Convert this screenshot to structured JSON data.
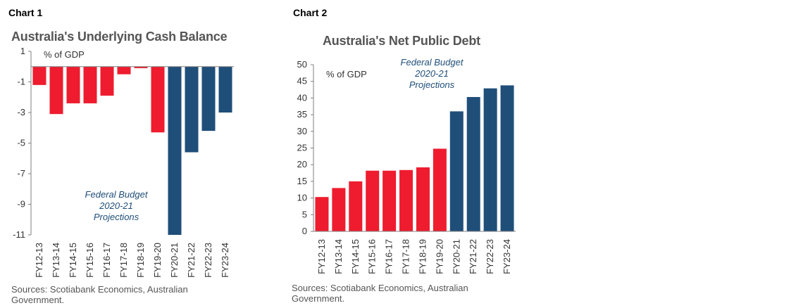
{
  "colors": {
    "actual": "#ee1c2e",
    "projection": "#1f4e79",
    "axis": "#7f7f7f",
    "annotation": "#1f4e79"
  },
  "chart_data": [
    {
      "label": "Chart 1",
      "title": "Australia's Underlying Cash Balance",
      "type": "bar",
      "ylabel": "% of GDP",
      "ylim": [
        -11,
        1
      ],
      "yticks": [
        "1",
        "-1",
        "-3",
        "-5",
        "-7",
        "-9",
        "-11"
      ],
      "yticks_values": [
        1,
        -1,
        -3,
        -5,
        -7,
        -9,
        -11
      ],
      "categories": [
        "FY12-13",
        "FY13-14",
        "FY14-15",
        "FY15-16",
        "FY16-17",
        "FY17-18",
        "FY18-19",
        "FY19-20",
        "FY20-21",
        "FY21-22",
        "FY22-23",
        "FY23-24"
      ],
      "values": [
        -1.2,
        -3.1,
        -2.4,
        -2.4,
        -1.9,
        -0.5,
        -0.1,
        -4.3,
        -11.0,
        -5.6,
        -4.2,
        -3.0
      ],
      "projection_from_index": 8,
      "annotation": [
        "Federal Budget",
        "2020-21",
        "Projections"
      ],
      "source": "Sources: Scotiabank Economics, Australian Government."
    },
    {
      "label": "Chart 2",
      "title": "Australia's Net Public Debt",
      "type": "bar",
      "ylabel": "% of GDP",
      "ylim": [
        0,
        50
      ],
      "yticks": [
        "50",
        "45",
        "40",
        "35",
        "30",
        "25",
        "20",
        "15",
        "10",
        "5",
        "0"
      ],
      "yticks_values": [
        50,
        45,
        40,
        35,
        30,
        25,
        20,
        15,
        10,
        5,
        0
      ],
      "categories": [
        "FY12-13",
        "FY13-14",
        "FY14-15",
        "FY15-16",
        "FY16-17",
        "FY17-18",
        "FY18-19",
        "FY19-20",
        "FY20-21",
        "FY21-22",
        "FY22-23",
        "FY23-24"
      ],
      "values": [
        10.3,
        13.0,
        15.0,
        18.2,
        18.2,
        18.4,
        19.2,
        24.8,
        36.0,
        40.3,
        42.9,
        43.8
      ],
      "projection_from_index": 8,
      "annotation": [
        "Federal Budget",
        "2020-21",
        "Projections"
      ],
      "source": "Sources: Scotiabank Economics, Australian Government."
    }
  ]
}
